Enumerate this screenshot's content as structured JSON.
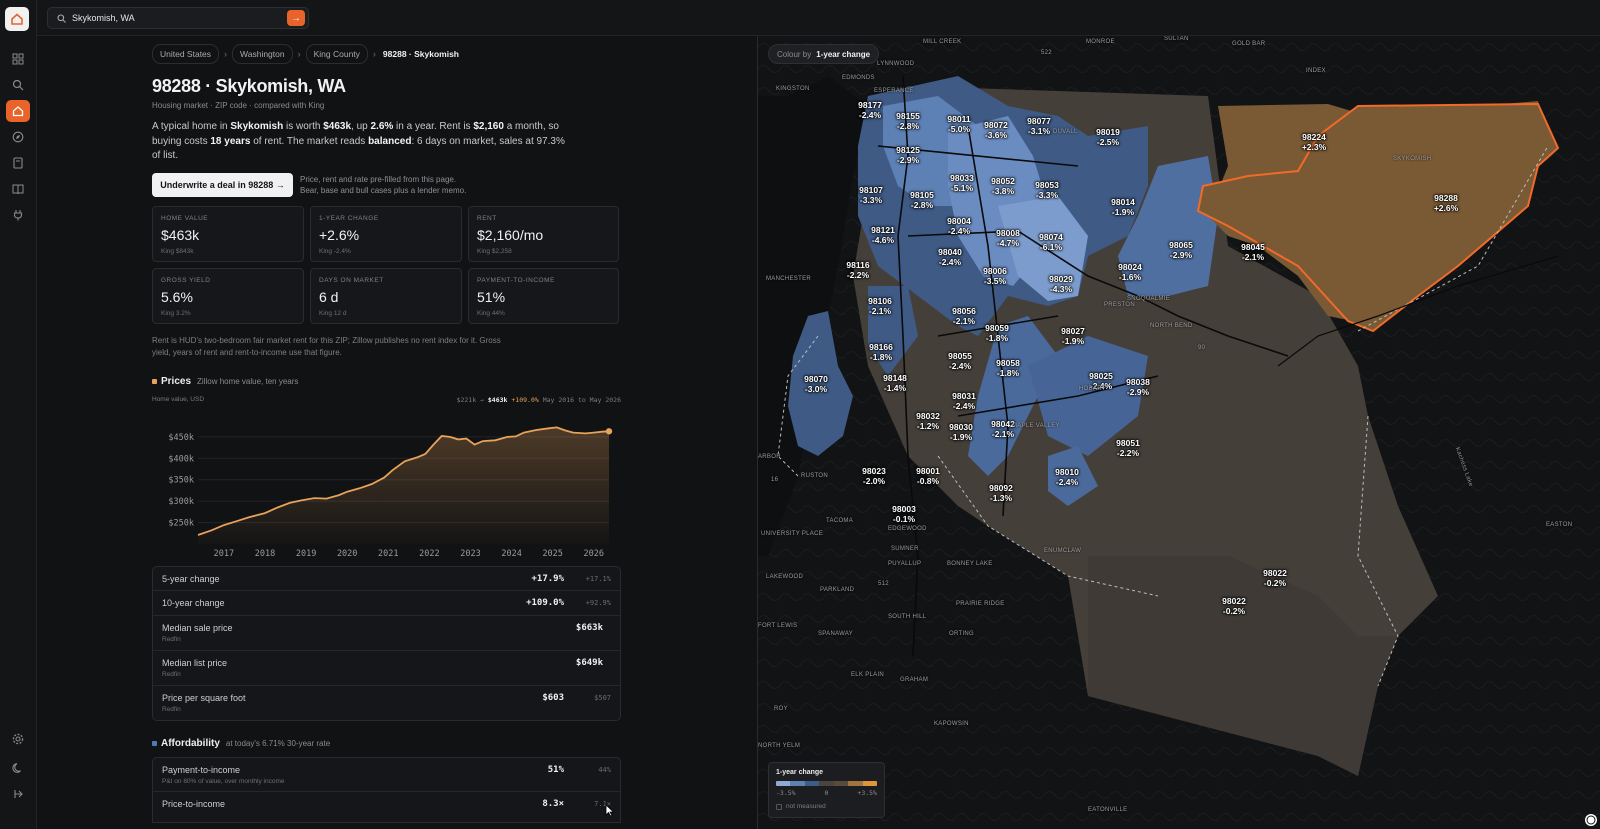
{
  "search": {
    "query": "Skykomish, WA"
  },
  "breadcrumb": [
    "United States",
    "Washington",
    "King County"
  ],
  "breadcrumb_current": "98288 · Skykomish",
  "page": {
    "title": "98288 · Skykomish, WA",
    "subtitle": "Housing market · ZIP code · compared with King",
    "summary": {
      "p1": "A typical home in ",
      "place": "Skykomish",
      "p2": " is worth ",
      "worth": "$463k",
      "p3": ", up ",
      "change": "2.6%",
      "p4": " in a year. Rent is ",
      "rent": "$2,160",
      "p5": " a month, so buying costs ",
      "years": "18 years",
      "p6": " of rent. The market reads ",
      "market": "balanced",
      "p7": ": 6 days on market, sales at 97.3% of list."
    }
  },
  "cta": {
    "label": "Underwrite a deal in 98288 →",
    "note1": "Price, rent and rate pre-filled from this page.",
    "note2": "Bear, base and bull cases plus a lender memo."
  },
  "cards": [
    {
      "label": "HOME VALUE",
      "value": "$463k",
      "compare": "King $843k"
    },
    {
      "label": "1-YEAR CHANGE",
      "value": "+2.6%",
      "compare": "King -2.4%"
    },
    {
      "label": "RENT",
      "value": "$2,160/mo",
      "compare": "King $2,258"
    },
    {
      "label": "GROSS YIELD",
      "value": "5.6%",
      "compare": "King 3.2%"
    },
    {
      "label": "DAYS ON MARKET",
      "value": "6 d",
      "compare": "King 12 d"
    },
    {
      "label": "PAYMENT-TO-INCOME",
      "value": "51%",
      "compare": "King 44%"
    }
  ],
  "footnote": "Rent is HUD's two-bedroom fair market rent for this ZIP; Zillow publishes no rent index for it. Gross yield, years of rent and rent-to-income use that figure.",
  "prices": {
    "title": "Prices",
    "subtitle": "Zillow home value, ten years",
    "ylabel": "Home value, USD",
    "range_from": "$221k →",
    "range_to": "$463k",
    "range_change": "+109.0%",
    "range_period": "May 2016 to May 2026",
    "accent": "#e8a25a"
  },
  "chart_data": {
    "type": "area",
    "ylabel": "Home value, USD",
    "ylim": [
      200000,
      480000
    ],
    "yticks": [
      "$250k",
      "$300k",
      "$350k",
      "$400k",
      "$450k"
    ],
    "ytick_values": [
      250000,
      300000,
      350000,
      400000,
      450000
    ],
    "xticks": [
      "2017",
      "2018",
      "2019",
      "2020",
      "2021",
      "2022",
      "2023",
      "2024",
      "2025",
      "2026"
    ],
    "xtick_values": [
      2017,
      2018,
      2019,
      2020,
      2021,
      2022,
      2023,
      2024,
      2025,
      2026
    ],
    "xlim": [
      2016.37,
      2026.37
    ],
    "series": [
      {
        "x": [
          2016.37,
          2016.7,
          2017.0,
          2017.3,
          2017.6,
          2018.0,
          2018.3,
          2018.6,
          2018.9,
          2019.2,
          2019.5,
          2019.8,
          2020.0,
          2020.3,
          2020.6,
          2020.9,
          2021.1,
          2021.4,
          2021.7,
          2021.9,
          2022.1,
          2022.3,
          2022.5,
          2022.7,
          2022.9,
          2023.1,
          2023.3,
          2023.6,
          2023.9,
          2024.1,
          2024.3,
          2024.6,
          2024.9,
          2025.1,
          2025.3,
          2025.5,
          2025.8,
          2026.0,
          2026.2,
          2026.37
        ],
        "values": [
          221000,
          232000,
          244000,
          253000,
          262000,
          272000,
          285000,
          296000,
          302000,
          307000,
          306000,
          314000,
          322000,
          330000,
          340000,
          355000,
          372000,
          393000,
          402000,
          410000,
          432000,
          452000,
          450000,
          444000,
          446000,
          432000,
          440000,
          442000,
          450000,
          451000,
          460000,
          466000,
          470000,
          472000,
          465000,
          460000,
          458000,
          460000,
          462000,
          463000
        ]
      }
    ]
  },
  "price_rows": [
    {
      "name": "5-year change",
      "value": "+17.9%",
      "compare": "+17.1%"
    },
    {
      "name": "10-year change",
      "value": "+109.0%",
      "compare": "+92.9%"
    },
    {
      "name": "Median sale price",
      "source": "Redfin",
      "value": "$663k"
    },
    {
      "name": "Median list price",
      "source": "Redfin",
      "value": "$649k"
    },
    {
      "name": "Price per square foot",
      "source": "Redfin",
      "value": "$603",
      "compare": "$507"
    }
  ],
  "afford": {
    "title": "Affordability",
    "subtitle": "at today's 6.71% 30-year rate",
    "accent": "#4f7ab8"
  },
  "afford_rows": [
    {
      "name": "Payment-to-income",
      "source": "P&I on 80% of value, over monthly income",
      "value": "51%",
      "compare": "44%"
    },
    {
      "name": "Price-to-income",
      "value": "8.3×",
      "compare": "7.1×"
    }
  ],
  "map": {
    "color_by_label": "Colour by",
    "color_by_value": "1-year change",
    "legend": {
      "title": "1-year change",
      "min": "-3.5%",
      "mid": "0",
      "max": "+3.5%",
      "not_measured": "not measured"
    },
    "colors": {
      "neg_strong": "#5a7fb3",
      "neg": "#3f5b86",
      "neutral": "#4a4440",
      "pos": "#7a5a34",
      "selected": "#f26a2a"
    },
    "zips": [
      {
        "zip": "98177",
        "change": "-2.4%"
      },
      {
        "zip": "98155",
        "change": "-2.8%"
      },
      {
        "zip": "98011",
        "change": "-5.0%"
      },
      {
        "zip": "98072",
        "change": "-3.6%"
      },
      {
        "zip": "98077",
        "change": "-3.1%"
      },
      {
        "zip": "98019",
        "change": "-2.5%"
      },
      {
        "zip": "98125",
        "change": "-2.9%"
      },
      {
        "zip": "98107",
        "change": "-3.3%"
      },
      {
        "zip": "98105",
        "change": "-2.8%"
      },
      {
        "zip": "98033",
        "change": "-5.1%"
      },
      {
        "zip": "98052",
        "change": "-3.8%"
      },
      {
        "zip": "98053",
        "change": "-3.3%"
      },
      {
        "zip": "98014",
        "change": "-1.9%"
      },
      {
        "zip": "98121",
        "change": "-4.6%"
      },
      {
        "zip": "98004",
        "change": "-2.4%"
      },
      {
        "zip": "98008",
        "change": "-4.7%"
      },
      {
        "zip": "98074",
        "change": "-6.1%"
      },
      {
        "zip": "98065",
        "change": "-2.9%"
      },
      {
        "zip": "98045",
        "change": "-2.1%"
      },
      {
        "zip": "98116",
        "change": "-2.2%"
      },
      {
        "zip": "98040",
        "change": "-2.4%"
      },
      {
        "zip": "98006",
        "change": "-3.5%"
      },
      {
        "zip": "98029",
        "change": "-4.3%"
      },
      {
        "zip": "98024",
        "change": "-1.6%"
      },
      {
        "zip": "98106",
        "change": "-2.1%"
      },
      {
        "zip": "98056",
        "change": "-2.1%"
      },
      {
        "zip": "98059",
        "change": "-1.8%"
      },
      {
        "zip": "98027",
        "change": "-1.9%"
      },
      {
        "zip": "98166",
        "change": "-1.8%"
      },
      {
        "zip": "98055",
        "change": "-2.4%"
      },
      {
        "zip": "98058",
        "change": "-1.8%"
      },
      {
        "zip": "98070",
        "change": "-3.0%"
      },
      {
        "zip": "98148",
        "change": "-1.4%"
      },
      {
        "zip": "98025",
        "change": "-2.4%"
      },
      {
        "zip": "98038",
        "change": "-2.9%"
      },
      {
        "zip": "98031",
        "change": "-2.4%"
      },
      {
        "zip": "98032",
        "change": "-1.2%"
      },
      {
        "zip": "98030",
        "change": "-1.9%"
      },
      {
        "zip": "98042",
        "change": "-2.1%"
      },
      {
        "zip": "98051",
        "change": "-2.2%"
      },
      {
        "zip": "98023",
        "change": "-2.0%"
      },
      {
        "zip": "98001",
        "change": "-0.8%"
      },
      {
        "zip": "98010",
        "change": "-2.4%"
      },
      {
        "zip": "98092",
        "change": "-1.3%"
      },
      {
        "zip": "98003",
        "change": "-0.1%"
      },
      {
        "zip": "98022",
        "change": "-0.2%"
      },
      {
        "zip": "98022",
        "change": "-0.2%"
      },
      {
        "zip": "98224",
        "change": "+2.3%"
      },
      {
        "zip": "98288",
        "change": "+2.6%"
      }
    ],
    "places": [
      "MILL CREEK",
      "MONROE",
      "SULTAN",
      "GOLD BAR",
      "INDEX",
      "LYNNWOOD",
      "EDMONDS",
      "KINGSTON",
      "ESPERANCE",
      "DUVALL",
      "SKYKOMISH",
      "MANCHESTER",
      "PRESTON",
      "SNOQUALMIE",
      "NORTH BEND",
      "HOBART",
      "MAPLE VALLEY",
      "ARBOR",
      "RUSTON",
      "TACOMA",
      "EDGEWOOD",
      "UNIVERSITY PLACE",
      "SUMNER",
      "BONNEY LAKE",
      "ENUMCLAW",
      "LAKEWOOD",
      "PUYALLUP",
      "PARKLAND",
      "PRAIRIE RIDGE",
      "SOUTH HILL",
      "FORT LEWIS",
      "SPANAWAY",
      "ORTING",
      "ELK PLAIN",
      "GRAHAM",
      "ROY",
      "KAPOWSIN",
      "NORTH YELM",
      "EATONVILLE",
      "EASTON",
      "Kachess Lake",
      "522",
      "90",
      "16",
      "512"
    ]
  }
}
